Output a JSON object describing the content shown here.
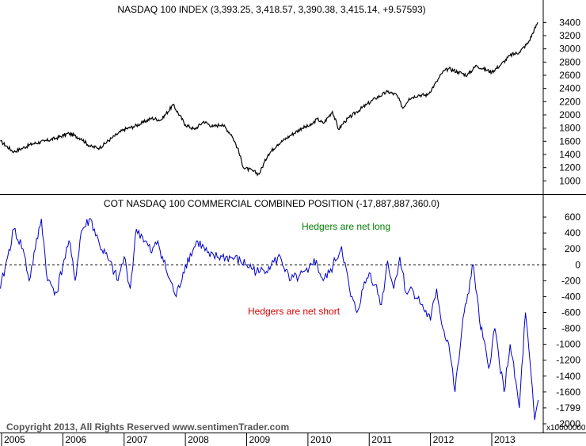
{
  "footer": "Copyright 2013, All Rights Reserved  www.sentimenTrader.com",
  "chart_data": [
    {
      "type": "line",
      "title": "NASDAQ 100 INDEX (3,393.25, 3,418.57, 3,390.38, 3,415.14, +9.57593)",
      "x_ticks": [
        "2005",
        "2006",
        "2007",
        "2008",
        "2009",
        "2010",
        "2011",
        "2012",
        "2013"
      ],
      "ylim": [
        860,
        3500
      ],
      "y_ticks": [
        1000,
        1200,
        1400,
        1600,
        1800,
        2000,
        2200,
        2400,
        2600,
        2800,
        3000,
        3200,
        3400
      ],
      "series": [
        {
          "color": "#000000",
          "x": [
            2004.98,
            2005.2,
            2005.35,
            2005.5,
            2005.7,
            2005.9,
            2006.1,
            2006.3,
            2006.45,
            2006.6,
            2006.8,
            2007.0,
            2007.15,
            2007.3,
            2007.45,
            2007.6,
            2007.8,
            2008.0,
            2008.15,
            2008.3,
            2008.45,
            2008.6,
            2008.75,
            2008.85,
            2008.95,
            2009.1,
            2009.2,
            2009.35,
            2009.5,
            2009.7,
            2009.9,
            2010.05,
            2010.15,
            2010.25,
            2010.4,
            2010.5,
            2010.6,
            2010.8,
            2010.95,
            2011.1,
            2011.3,
            2011.45,
            2011.55,
            2011.65,
            2011.8,
            2011.95,
            2012.1,
            2012.2,
            2012.3,
            2012.45,
            2012.6,
            2012.75,
            2012.85,
            2013.0,
            2013.15,
            2013.3,
            2013.45,
            2013.6,
            2013.75
          ],
          "y": [
            1600,
            1440,
            1500,
            1560,
            1600,
            1650,
            1720,
            1640,
            1520,
            1500,
            1650,
            1780,
            1820,
            1880,
            1950,
            1920,
            2150,
            1850,
            1780,
            1900,
            1820,
            1860,
            1700,
            1500,
            1200,
            1150,
            1100,
            1400,
            1550,
            1680,
            1800,
            1840,
            1940,
            1870,
            2050,
            1780,
            1900,
            2050,
            2150,
            2250,
            2350,
            2300,
            2100,
            2250,
            2300,
            2300,
            2500,
            2650,
            2700,
            2650,
            2600,
            2750,
            2700,
            2650,
            2760,
            2900,
            2950,
            3100,
            3400
          ]
        }
      ]
    },
    {
      "type": "line",
      "title": "COT NASDAQ 100 COMMERCIAL COMBINED POSITION (-17,887,887,360.0)",
      "ylim": [
        -2050,
        720
      ],
      "y_ticks": [
        "600",
        "400",
        "200",
        "0",
        "-200",
        "-400",
        "-600",
        "-800",
        "-1000",
        "-1200",
        "-1400",
        "-1600",
        "-1799",
        "-2000"
      ],
      "y_multiplier_label": "x10000000",
      "annotations": [
        {
          "text": "Hedgers are net long",
          "color": "#008000"
        },
        {
          "text": "Hedgers are net short",
          "color": "#e00000"
        }
      ],
      "series": [
        {
          "color": "#0000cc",
          "x": [
            2004.98,
            2005.1,
            2005.2,
            2005.35,
            2005.45,
            2005.55,
            2005.65,
            2005.75,
            2005.9,
            2006.0,
            2006.1,
            2006.2,
            2006.3,
            2006.45,
            2006.6,
            2006.75,
            2006.9,
            2007.0,
            2007.1,
            2007.2,
            2007.3,
            2007.45,
            2007.55,
            2007.7,
            2007.85,
            2008.0,
            2008.2,
            2008.4,
            2008.6,
            2008.8,
            2009.0,
            2009.2,
            2009.4,
            2009.55,
            2009.7,
            2009.85,
            2010.0,
            2010.1,
            2010.25,
            2010.35,
            2010.45,
            2010.55,
            2010.7,
            2010.8,
            2010.9,
            2011.0,
            2011.1,
            2011.2,
            2011.3,
            2011.4,
            2011.5,
            2011.6,
            2011.7,
            2011.85,
            2012.0,
            2012.1,
            2012.2,
            2012.3,
            2012.4,
            2012.55,
            2012.7,
            2012.8,
            2012.95,
            2013.05,
            2013.2,
            2013.3,
            2013.45,
            2013.55,
            2013.7,
            2013.76
          ],
          "y": [
            -300,
            100,
            450,
            200,
            -200,
            200,
            580,
            -200,
            -350,
            0,
            300,
            -200,
            420,
            580,
            250,
            50,
            -200,
            100,
            -300,
            450,
            350,
            150,
            300,
            -100,
            -400,
            0,
            300,
            100,
            100,
            80,
            0,
            -100,
            0,
            100,
            -200,
            -150,
            -100,
            80,
            -200,
            -100,
            50,
            230,
            -400,
            -600,
            -300,
            -100,
            -250,
            -500,
            50,
            -300,
            100,
            -350,
            -300,
            -500,
            -700,
            -300,
            -800,
            -1000,
            -1600,
            -600,
            0,
            -700,
            -1300,
            -800,
            -1600,
            -1000,
            -1800,
            -600,
            -1950,
            -1700
          ]
        }
      ]
    }
  ]
}
